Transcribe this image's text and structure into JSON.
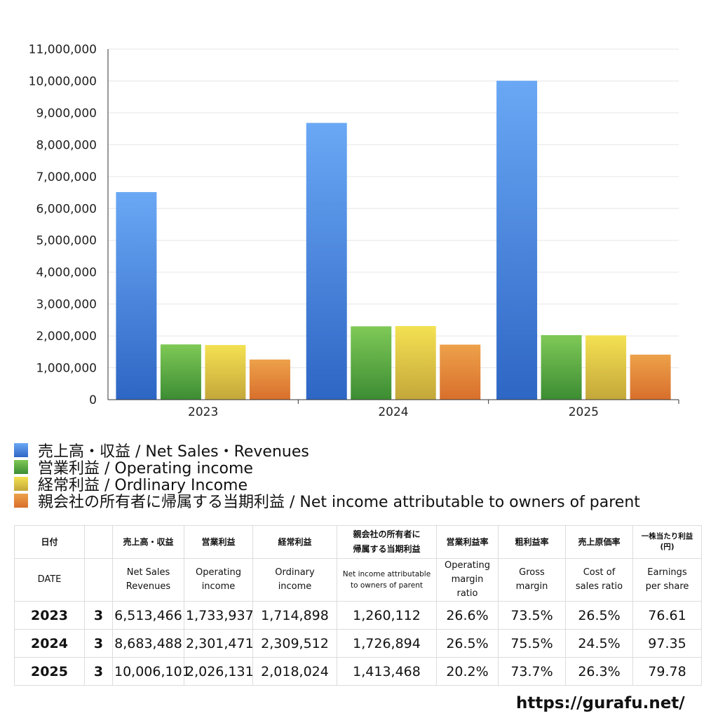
{
  "chart_data": {
    "type": "bar",
    "title": "",
    "xlabel": "",
    "ylabel": "",
    "ylim": [
      0,
      11000000
    ],
    "yticks": [
      0,
      1000000,
      2000000,
      3000000,
      4000000,
      5000000,
      6000000,
      7000000,
      8000000,
      9000000,
      10000000,
      11000000
    ],
    "ytick_labels": [
      "0",
      "1,000,000",
      "2,000,000",
      "3,000,000",
      "4,000,000",
      "5,000,000",
      "6,000,000",
      "7,000,000",
      "8,000,000",
      "9,000,000",
      "10,000,000",
      "11,000,000"
    ],
    "grid": true,
    "categories": [
      "2023",
      "2024",
      "2025"
    ],
    "series": [
      {
        "name": "売上高・収益 / Net Sales・Revenues",
        "values": [
          6513466,
          8683488,
          10006101
        ],
        "color_top": "#6aa8f5",
        "color_bottom": "#2e66c4"
      },
      {
        "name": "営業利益 / Operating income",
        "values": [
          1733937,
          2301471,
          2026131
        ],
        "color_top": "#7fc957",
        "color_bottom": "#3c8c33"
      },
      {
        "name": "経常利益 / Ordlinary Income",
        "values": [
          1714898,
          2309512,
          2018024
        ],
        "color_top": "#f4e152",
        "color_bottom": "#c4a73a"
      },
      {
        "name": "親会社の所有者に帰属する当期利益 / Net income attributable to owners of parent",
        "values": [
          1260112,
          1726894,
          1413468
        ],
        "color_top": "#eda14a",
        "color_bottom": "#d86f2c"
      }
    ],
    "legend": "bottom"
  },
  "table": {
    "header_jp": {
      "date": "日付",
      "sales": "売上高・収益",
      "op": "営業利益",
      "ord": "経常利益",
      "net_l1": "親会社の所有者に",
      "net_l2": "帰属する当期利益",
      "opm": "営業利益率",
      "gm": "粗利益率",
      "cost": "売上原価率",
      "eps_l1": "一株当たり利益",
      "eps_l2": "(円)"
    },
    "header_en": {
      "date": "DATE",
      "sales_l1": "Net Sales",
      "sales_l2": "Revenues",
      "op_l1": "Operating",
      "op_l2": "income",
      "ord_l1": "Ordinary",
      "ord_l2": "income",
      "net_l1": "Net income attributable",
      "net_l2": "to owners of parent",
      "opm_l1": "Operating",
      "opm_l2": "margin",
      "opm_l3": "ratio",
      "gm_l1": "Gross",
      "gm_l2": "margin",
      "cost_l1": "Cost of",
      "cost_l2": "sales ratio",
      "eps_l1": "Earnings",
      "eps_l2": "per share"
    },
    "rows": [
      {
        "year": "2023",
        "month": "3",
        "sales": "6,513,466",
        "op": "1,733,937",
        "ord": "1,714,898",
        "net": "1,260,112",
        "opm": "26.6%",
        "gm": "73.5%",
        "cost": "26.5%",
        "eps": "76.61"
      },
      {
        "year": "2024",
        "month": "3",
        "sales": "8,683,488",
        "op": "2,301,471",
        "ord": "2,309,512",
        "net": "1,726,894",
        "opm": "26.5%",
        "gm": "75.5%",
        "cost": "24.5%",
        "eps": "97.35"
      },
      {
        "year": "2025",
        "month": "3",
        "sales": "10,006,101",
        "op": "2,026,131",
        "ord": "2,018,024",
        "net": "1,413,468",
        "opm": "20.2%",
        "gm": "73.7%",
        "cost": "26.3%",
        "eps": "79.78"
      }
    ]
  },
  "footer": {
    "site": "https://gurafu.net/"
  }
}
